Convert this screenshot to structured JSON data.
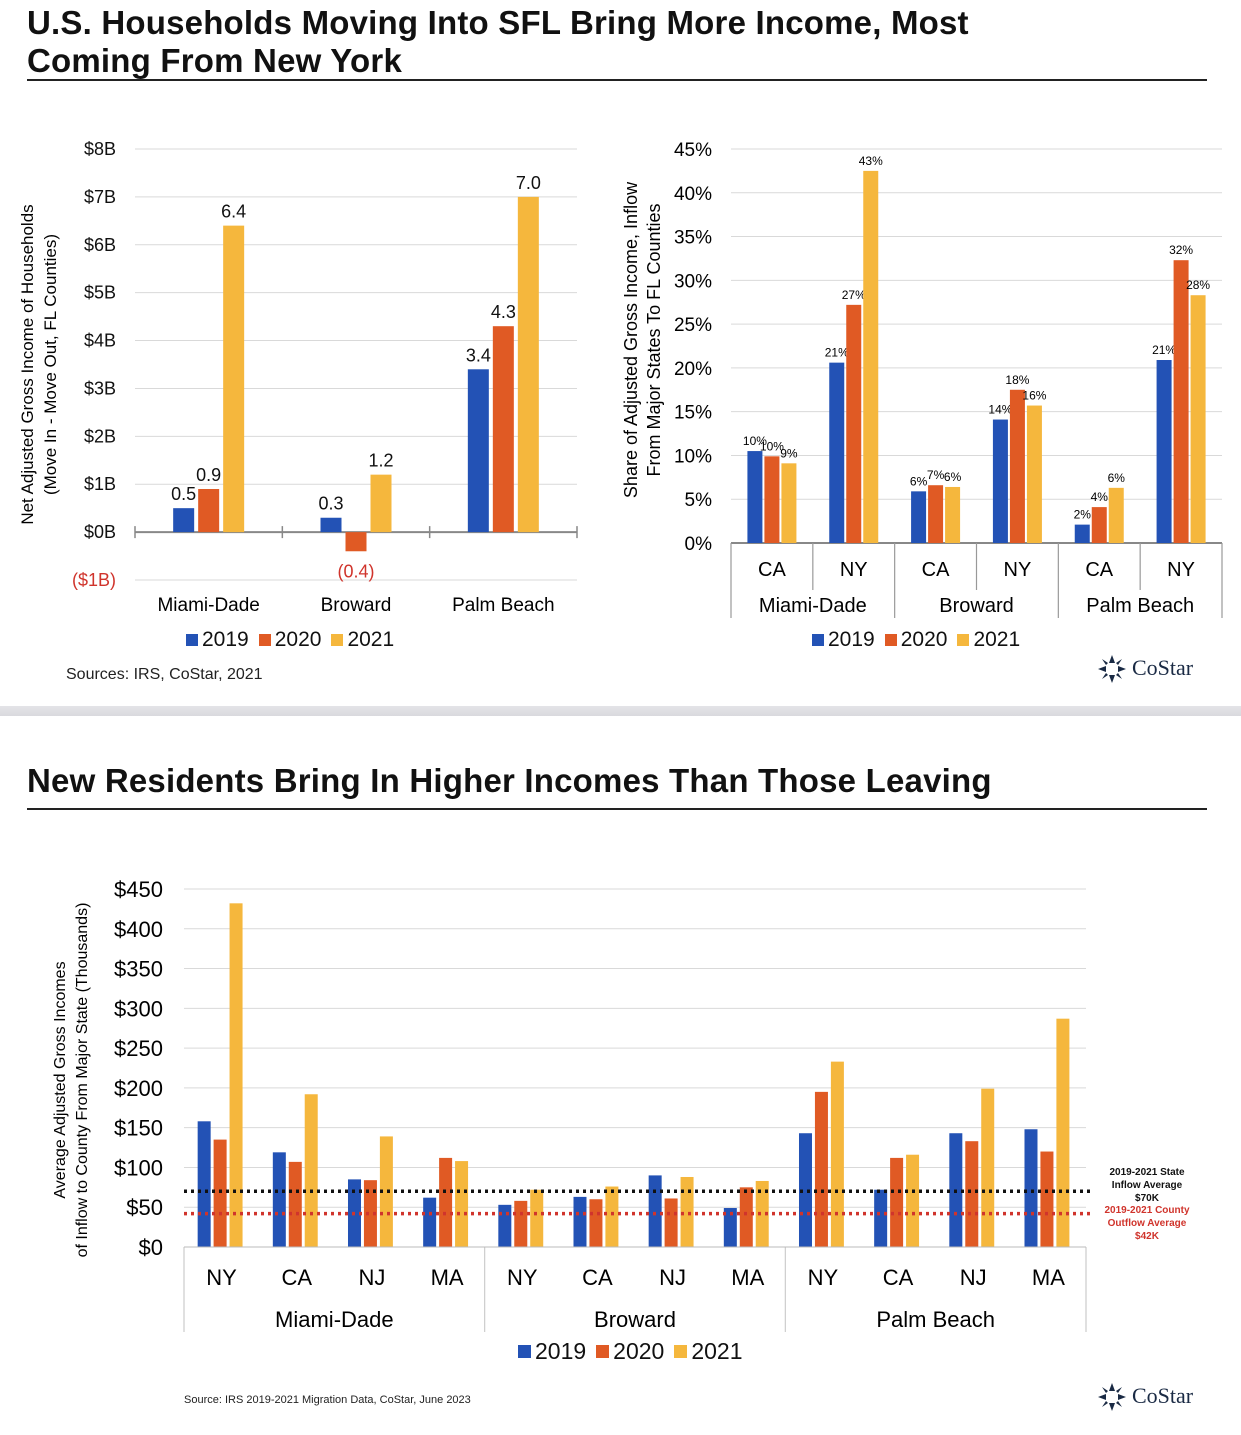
{
  "slide1": {
    "title_line1": "U.S. Households Moving Into SFL Bring More Income, Most",
    "title_line2": "Coming From New York",
    "source": "Sources: IRS, CoStar, 2021",
    "logo": "CoStar"
  },
  "slide2": {
    "title": "New Residents Bring In Higher Incomes Than Those Leaving",
    "source": "Source: IRS 2019-2021 Migration Data, CoStar, June 2023",
    "logo": "CoStar"
  },
  "legend": [
    "2019",
    "2020",
    "2021"
  ],
  "colors": {
    "2019": "#2352b5",
    "2020": "#e05a24",
    "2021": "#f5b73d",
    "negative": "#d0342c",
    "state_line": "#111111",
    "county_line": "#d0342c"
  },
  "chart_data": [
    {
      "type": "bar",
      "categories": [
        "Miami-Dade",
        "Broward",
        "Palm Beach"
      ],
      "series": [
        {
          "name": "2019",
          "values": [
            0.5,
            0.3,
            3.4
          ]
        },
        {
          "name": "2020",
          "values": [
            0.9,
            -0.4,
            4.3
          ]
        },
        {
          "name": "2021",
          "values": [
            6.4,
            1.2,
            7.0
          ]
        }
      ],
      "data_labels": [
        [
          "0.5",
          "0.3",
          "3.4"
        ],
        [
          "0.9",
          "(0.4)",
          "4.3"
        ],
        [
          "6.4",
          "1.2",
          "7.0"
        ]
      ],
      "ylabel_line1": "Net Adjusted Gross Income of Households",
      "ylabel_line2": "(Move In - Move Out, FL Counties)",
      "yticks": [
        -1,
        0,
        1,
        2,
        3,
        4,
        5,
        6,
        7,
        8
      ],
      "ytick_labels": [
        "($1B)",
        "$0B",
        "$1B",
        "$2B",
        "$3B",
        "$4B",
        "$5B",
        "$6B",
        "$7B",
        "$8B"
      ],
      "ylim": [
        -1,
        8
      ],
      "grid": true,
      "legend_position": "bottom"
    },
    {
      "type": "bar",
      "groups": [
        "Miami-Dade",
        "Broward",
        "Palm Beach"
      ],
      "categories": [
        "CA",
        "NY",
        "CA",
        "NY",
        "CA",
        "NY"
      ],
      "series": [
        {
          "name": "2019",
          "values": [
            10,
            21,
            6,
            14,
            2,
            21
          ]
        },
        {
          "name": "2020",
          "values": [
            10,
            27,
            7,
            18,
            4,
            32
          ]
        },
        {
          "name": "2021",
          "values": [
            9,
            43,
            6,
            16,
            6,
            28
          ]
        }
      ],
      "plot_values": [
        [
          10.5,
          20.6,
          5.9,
          14.1,
          2.1,
          20.9
        ],
        [
          9.9,
          27.2,
          6.6,
          17.5,
          4.1,
          32.3
        ],
        [
          9.1,
          42.5,
          6.4,
          15.7,
          6.3,
          28.3
        ]
      ],
      "data_labels": [
        [
          "10%",
          "21%",
          "6%",
          "14%",
          "2%",
          "21%"
        ],
        [
          "10%",
          "27%",
          "7%",
          "18%",
          "4%",
          "32%"
        ],
        [
          "9%",
          "43%",
          "6%",
          "16%",
          "6%",
          "28%"
        ]
      ],
      "ylabel_line1": "Share of Adjusted Gross Income, Inflow",
      "ylabel_line2": "From Major States To FL Counties",
      "yticks": [
        0,
        5,
        10,
        15,
        20,
        25,
        30,
        35,
        40,
        45
      ],
      "ytick_labels": [
        "0%",
        "5%",
        "10%",
        "15%",
        "20%",
        "25%",
        "30%",
        "35%",
        "40%",
        "45%"
      ],
      "ylim": [
        0,
        45
      ],
      "grid": true,
      "legend_position": "bottom"
    },
    {
      "type": "bar",
      "groups": [
        "Miami-Dade",
        "Broward",
        "Palm Beach"
      ],
      "categories": [
        "NY",
        "CA",
        "NJ",
        "MA",
        "NY",
        "CA",
        "NJ",
        "MA",
        "NY",
        "CA",
        "NJ",
        "MA"
      ],
      "series": [
        {
          "name": "2019",
          "values": [
            158,
            119,
            85,
            62,
            53,
            63,
            90,
            49,
            143,
            72,
            143,
            148
          ]
        },
        {
          "name": "2020",
          "values": [
            135,
            107,
            84,
            112,
            58,
            60,
            61,
            75,
            195,
            112,
            133,
            120
          ]
        },
        {
          "name": "2021",
          "values": [
            432,
            192,
            139,
            108,
            72,
            76,
            88,
            83,
            233,
            116,
            199,
            287
          ]
        }
      ],
      "reference_lines": [
        {
          "value": 70,
          "label_lines": [
            "2019-2021 State",
            "Inflow Average",
            "$70K"
          ]
        },
        {
          "value": 42,
          "label_lines": [
            "2019-2021 County",
            "Outflow Average",
            "$42K"
          ]
        }
      ],
      "ylabel_line1": "Average Adjusted Gross Incomes",
      "ylabel_line2": "of Inflow to County From Major State (Thousands)",
      "yticks": [
        0,
        50,
        100,
        150,
        200,
        250,
        300,
        350,
        400,
        450
      ],
      "ytick_labels": [
        "$0",
        "$50",
        "$100",
        "$150",
        "$200",
        "$250",
        "$300",
        "$350",
        "$400",
        "$450"
      ],
      "ylim": [
        0,
        450
      ],
      "grid": true,
      "legend_position": "bottom"
    }
  ]
}
